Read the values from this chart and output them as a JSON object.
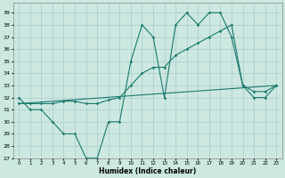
{
  "title": "",
  "xlabel": "Humidex (Indice chaleur)",
  "xlim": [
    -0.5,
    23.5
  ],
  "ylim": [
    27,
    39.8
  ],
  "yticks": [
    27,
    28,
    29,
    30,
    31,
    32,
    33,
    34,
    35,
    36,
    37,
    38,
    39
  ],
  "xticks": [
    0,
    1,
    2,
    3,
    4,
    5,
    6,
    7,
    8,
    9,
    10,
    11,
    12,
    13,
    14,
    15,
    16,
    17,
    18,
    19,
    20,
    21,
    22,
    23
  ],
  "bg_color": "#cce8e0",
  "grid_color": "#aacccc",
  "line_color": "#1a7a6e",
  "line1_x": [
    0,
    1,
    2,
    3,
    4,
    5,
    6,
    7,
    8,
    9,
    10,
    11,
    12,
    13,
    14,
    15,
    16,
    17,
    18,
    19,
    20,
    21,
    22,
    23
  ],
  "line1_y": [
    32,
    31,
    31,
    30,
    29,
    29,
    27,
    27,
    30,
    30,
    35,
    38,
    37,
    32,
    38,
    39,
    38,
    39,
    39,
    37,
    33,
    32,
    32,
    33
  ],
  "line2_x": [
    0,
    1,
    2,
    3,
    4,
    5,
    6,
    7,
    8,
    9,
    10,
    11,
    12,
    13,
    14,
    15,
    16,
    17,
    18,
    19,
    20,
    21,
    22,
    23
  ],
  "line2_y": [
    31.5,
    31.5,
    31.5,
    31.5,
    31.7,
    31.7,
    31.5,
    31.5,
    31.8,
    32.0,
    33.0,
    34.0,
    34.5,
    34.5,
    35.5,
    36.0,
    36.5,
    37.0,
    37.5,
    38.0,
    33.0,
    32.5,
    32.5,
    33.0
  ],
  "line3_x": [
    0,
    23
  ],
  "line3_y": [
    31.5,
    33.0
  ]
}
